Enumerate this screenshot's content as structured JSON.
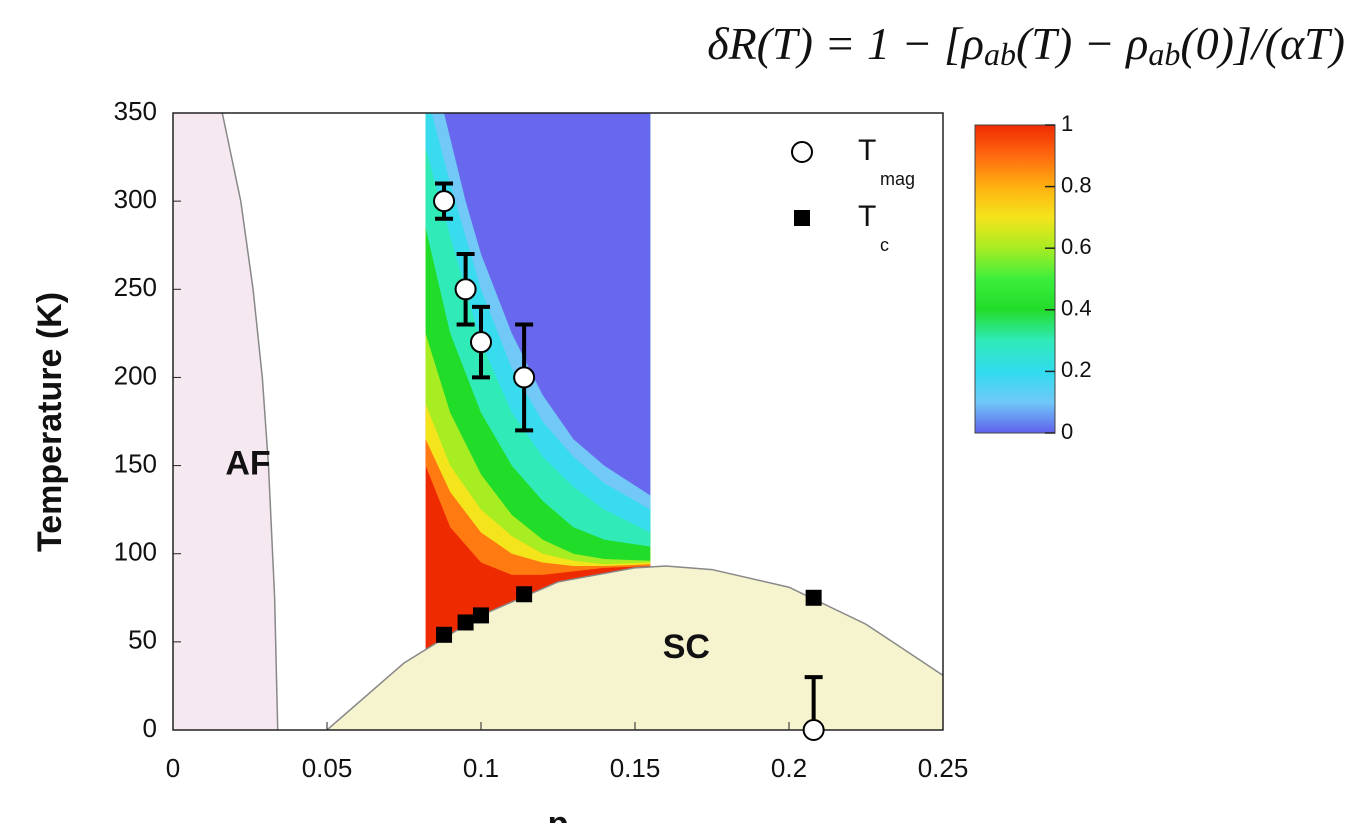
{
  "chart_data": {
    "type": "scatter",
    "title_parts": [
      "δR(T) = 1 − [ρ",
      "ab",
      "(T) − ρ",
      "ab",
      "(0)]/(αT)"
    ],
    "x_label": "p",
    "y_label": "Temperature (K)",
    "xlim": [
      0,
      0.25
    ],
    "xticks": [
      0,
      0.05,
      0.1,
      0.15,
      0.2,
      0.25
    ],
    "ylim": [
      0,
      350
    ],
    "yticks": [
      0,
      50,
      100,
      150,
      200,
      250,
      300,
      350
    ],
    "grid": false,
    "annotations": [
      {
        "text": "AF",
        "x": 0.017,
        "y": 150
      },
      {
        "text": "SC",
        "x": 0.159,
        "y": 46
      }
    ],
    "af_region": {
      "color": "#f6e8f1",
      "x": [
        0.016,
        0.022,
        0.026,
        0.029,
        0.031,
        0.033,
        0.034
      ],
      "values": [
        350,
        300,
        250,
        200,
        150,
        75,
        0
      ]
    },
    "sc_region": {
      "color": "#f6f3cf",
      "x": [
        0.05,
        0.075,
        0.1,
        0.125,
        0.15,
        0.16,
        0.175,
        0.2,
        0.225,
        0.25
      ],
      "values": [
        0,
        38,
        65,
        84,
        92,
        93,
        91,
        81,
        60,
        31
      ]
    },
    "heatmap": {
      "x_range": [
        0.082,
        0.155
      ],
      "bands": [
        {
          "color": "#ff7a10",
          "x": [
            0.082,
            0.09,
            0.1,
            0.11,
            0.12,
            0.13,
            0.14,
            0.155
          ],
          "values": [
            150,
            115,
            95,
            88,
            88,
            90,
            92,
            93
          ]
        },
        {
          "color": "#f4e41c",
          "x": [
            0.082,
            0.09,
            0.1,
            0.11,
            0.12,
            0.13,
            0.14,
            0.155
          ],
          "values": [
            165,
            135,
            112,
            100,
            95,
            93,
            93,
            94
          ]
        },
        {
          "color": "#a8ec22",
          "x": [
            0.082,
            0.09,
            0.1,
            0.11,
            0.12,
            0.13,
            0.14,
            0.155
          ],
          "values": [
            185,
            150,
            125,
            110,
            100,
            96,
            94,
            95
          ]
        },
        {
          "color": "#22dc2a",
          "x": [
            0.082,
            0.09,
            0.1,
            0.11,
            0.12,
            0.13,
            0.14,
            0.155
          ],
          "values": [
            225,
            180,
            145,
            122,
            108,
            100,
            97,
            96
          ]
        },
        {
          "color": "#30eab8",
          "x": [
            0.082,
            0.09,
            0.1,
            0.11,
            0.12,
            0.13,
            0.14,
            0.155
          ],
          "values": [
            285,
            225,
            180,
            150,
            130,
            115,
            108,
            104
          ]
        },
        {
          "color": "#38dcee",
          "x": [
            0.082,
            0.09,
            0.1,
            0.11,
            0.12,
            0.13,
            0.14,
            0.155
          ],
          "values": [
            330,
            280,
            220,
            180,
            155,
            138,
            125,
            112
          ]
        },
        {
          "color": "#72c8f6",
          "x": [
            0.084,
            0.09,
            0.1,
            0.11,
            0.12,
            0.13,
            0.14,
            0.155
          ],
          "values": [
            350,
            310,
            250,
            205,
            175,
            155,
            140,
            125
          ]
        },
        {
          "color": "#6868ee",
          "x": [
            0.088,
            0.095,
            0.1,
            0.11,
            0.12,
            0.13,
            0.14,
            0.155
          ],
          "values": [
            350,
            300,
            270,
            225,
            190,
            165,
            150,
            133
          ]
        }
      ]
    },
    "colorbar": {
      "lim": [
        0,
        1
      ],
      "ticks": [
        0,
        0.2,
        0.4,
        0.6,
        0.8,
        1
      ],
      "colormap": [
        "#6060ec",
        "#70c8f8",
        "#30dcee",
        "#30eab8",
        "#22dc2a",
        "#3cee3c",
        "#a8ec22",
        "#f4e41c",
        "#ffb010",
        "#ff6a10",
        "#ee2a00"
      ]
    },
    "series": [
      {
        "name": "T",
        "name_sub": "mag",
        "marker": "circle",
        "color": "#ffffff",
        "x": [
          0.088,
          0.095,
          0.1,
          0.114,
          0.208
        ],
        "values": [
          300,
          250,
          220,
          200,
          0
        ],
        "err_minus": [
          10,
          20,
          20,
          30,
          0
        ],
        "err_plus": [
          10,
          20,
          20,
          30,
          30
        ]
      },
      {
        "name": "T",
        "name_sub": "c",
        "marker": "square",
        "color": "#000000",
        "x": [
          0.088,
          0.095,
          0.1,
          0.114,
          0.208
        ],
        "values": [
          54,
          61,
          65,
          77,
          75
        ]
      }
    ]
  }
}
